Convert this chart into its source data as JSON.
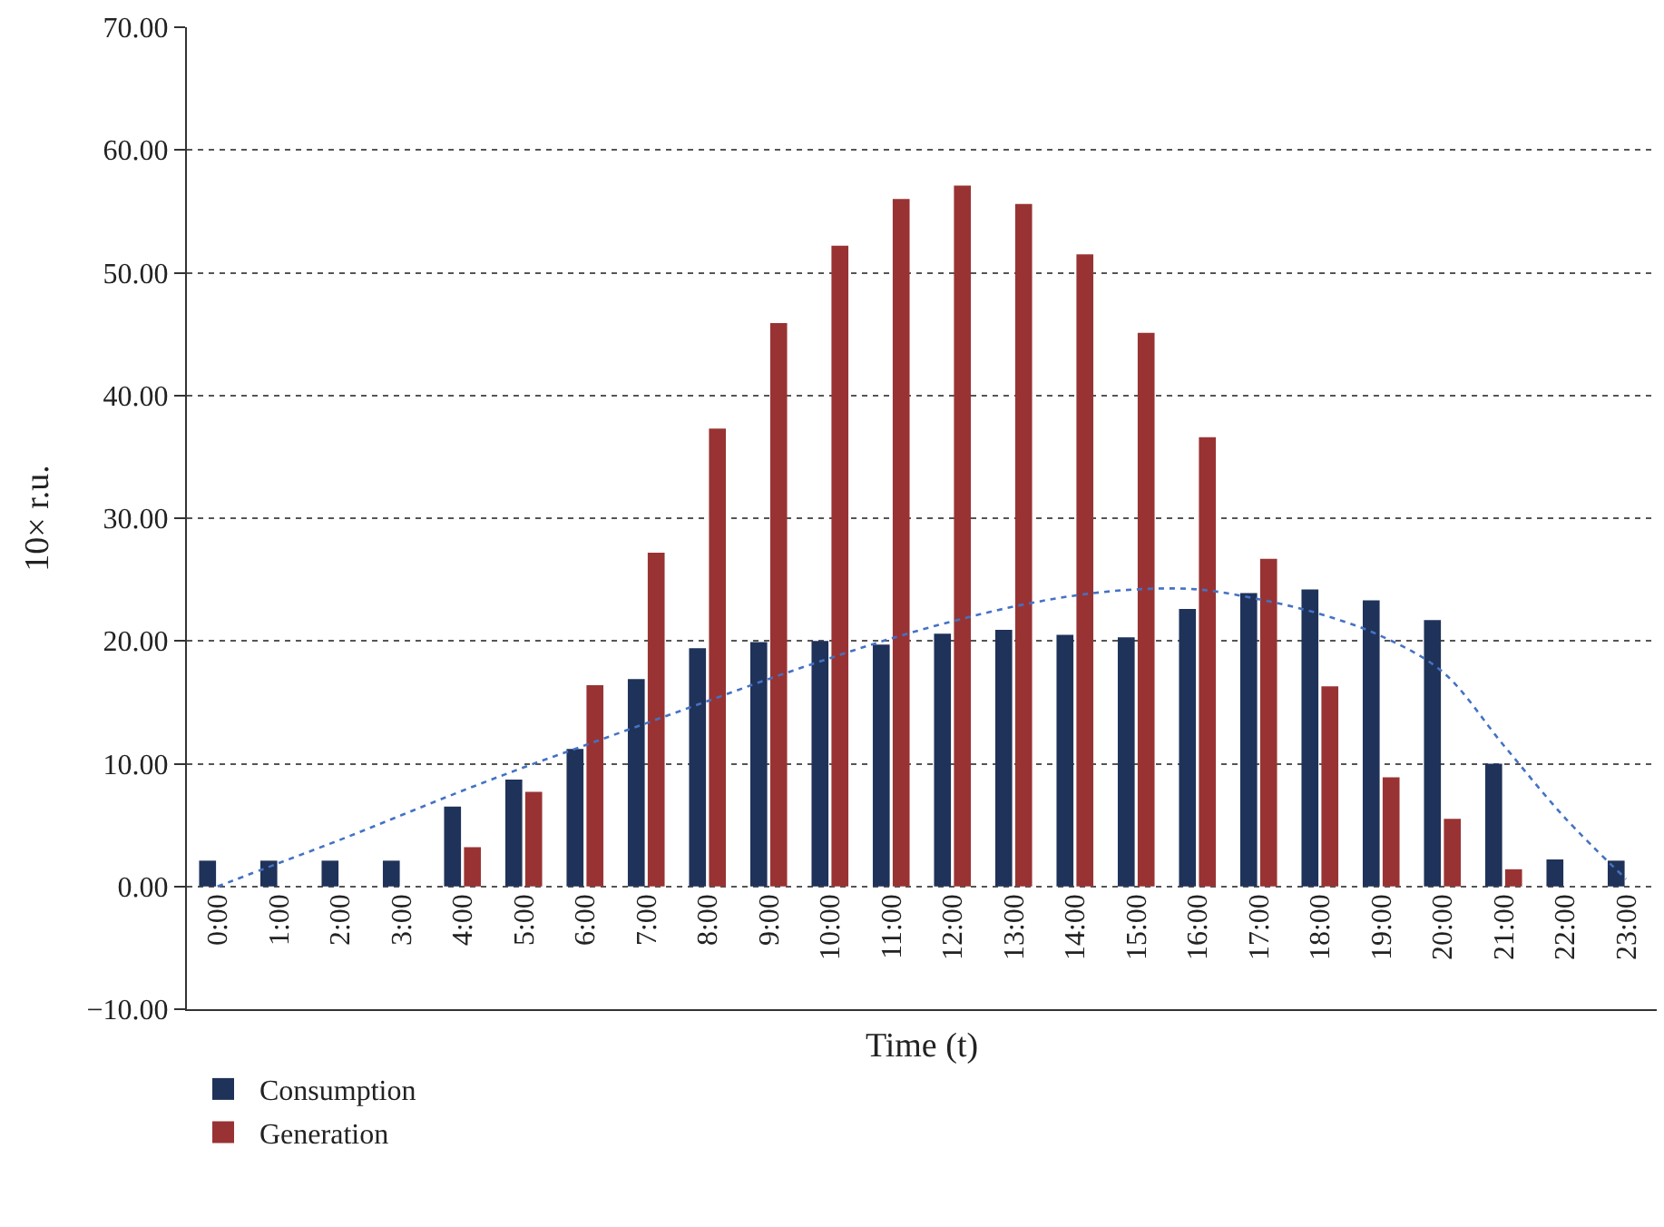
{
  "chart_data": {
    "type": "bar",
    "xlabel": "Time (t)",
    "ylabel": "10× r.u.",
    "categories": [
      "0:00",
      "1:00",
      "2:00",
      "3:00",
      "4:00",
      "5:00",
      "6:00",
      "7:00",
      "8:00",
      "9:00",
      "10:00",
      "11:00",
      "12:00",
      "13:00",
      "14:00",
      "15:00",
      "16:00",
      "17:00",
      "18:00",
      "19:00",
      "20:00",
      "21:00",
      "22:00",
      "23:00"
    ],
    "series": [
      {
        "name": "Consumption",
        "color": "#1f3259",
        "values": [
          2.1,
          2.1,
          2.1,
          2.1,
          6.5,
          8.7,
          11.2,
          16.9,
          19.4,
          19.9,
          20.0,
          19.7,
          20.6,
          20.9,
          20.5,
          20.3,
          22.6,
          23.9,
          24.2,
          23.3,
          21.7,
          10.0,
          2.2,
          2.1
        ]
      },
      {
        "name": "Generation",
        "color": "#993333",
        "values": [
          null,
          null,
          null,
          null,
          3.2,
          7.7,
          16.4,
          27.2,
          37.3,
          45.9,
          52.2,
          56.0,
          57.1,
          55.6,
          51.5,
          45.1,
          36.6,
          26.7,
          16.3,
          8.9,
          5.5,
          1.4,
          null,
          null
        ]
      },
      {
        "type": "line",
        "color": "#4472c4",
        "line_style": "dotted",
        "values": [
          0,
          1.9,
          3.8,
          5.8,
          7.8,
          9.7,
          11.5,
          13.3,
          15.1,
          16.9,
          18.6,
          20.2,
          21.6,
          22.8,
          23.7,
          24.2,
          24.2,
          23.4,
          22.2,
          20.4,
          17.5,
          11.5,
          5.6,
          0.6
        ]
      }
    ],
    "ylim": [
      -10,
      70
    ],
    "yticks": [
      {
        "value": -10,
        "label": "−10.00"
      },
      {
        "value": 0,
        "label": "0.00"
      },
      {
        "value": 10,
        "label": "10.00"
      },
      {
        "value": 20,
        "label": "20.00"
      },
      {
        "value": 30,
        "label": "30.00"
      },
      {
        "value": 40,
        "label": "40.00"
      },
      {
        "value": 50,
        "label": "50.00"
      },
      {
        "value": 60,
        "label": "60.00"
      },
      {
        "value": 70,
        "label": "70.00"
      }
    ],
    "grid": "y",
    "legend": "bottom left"
  }
}
